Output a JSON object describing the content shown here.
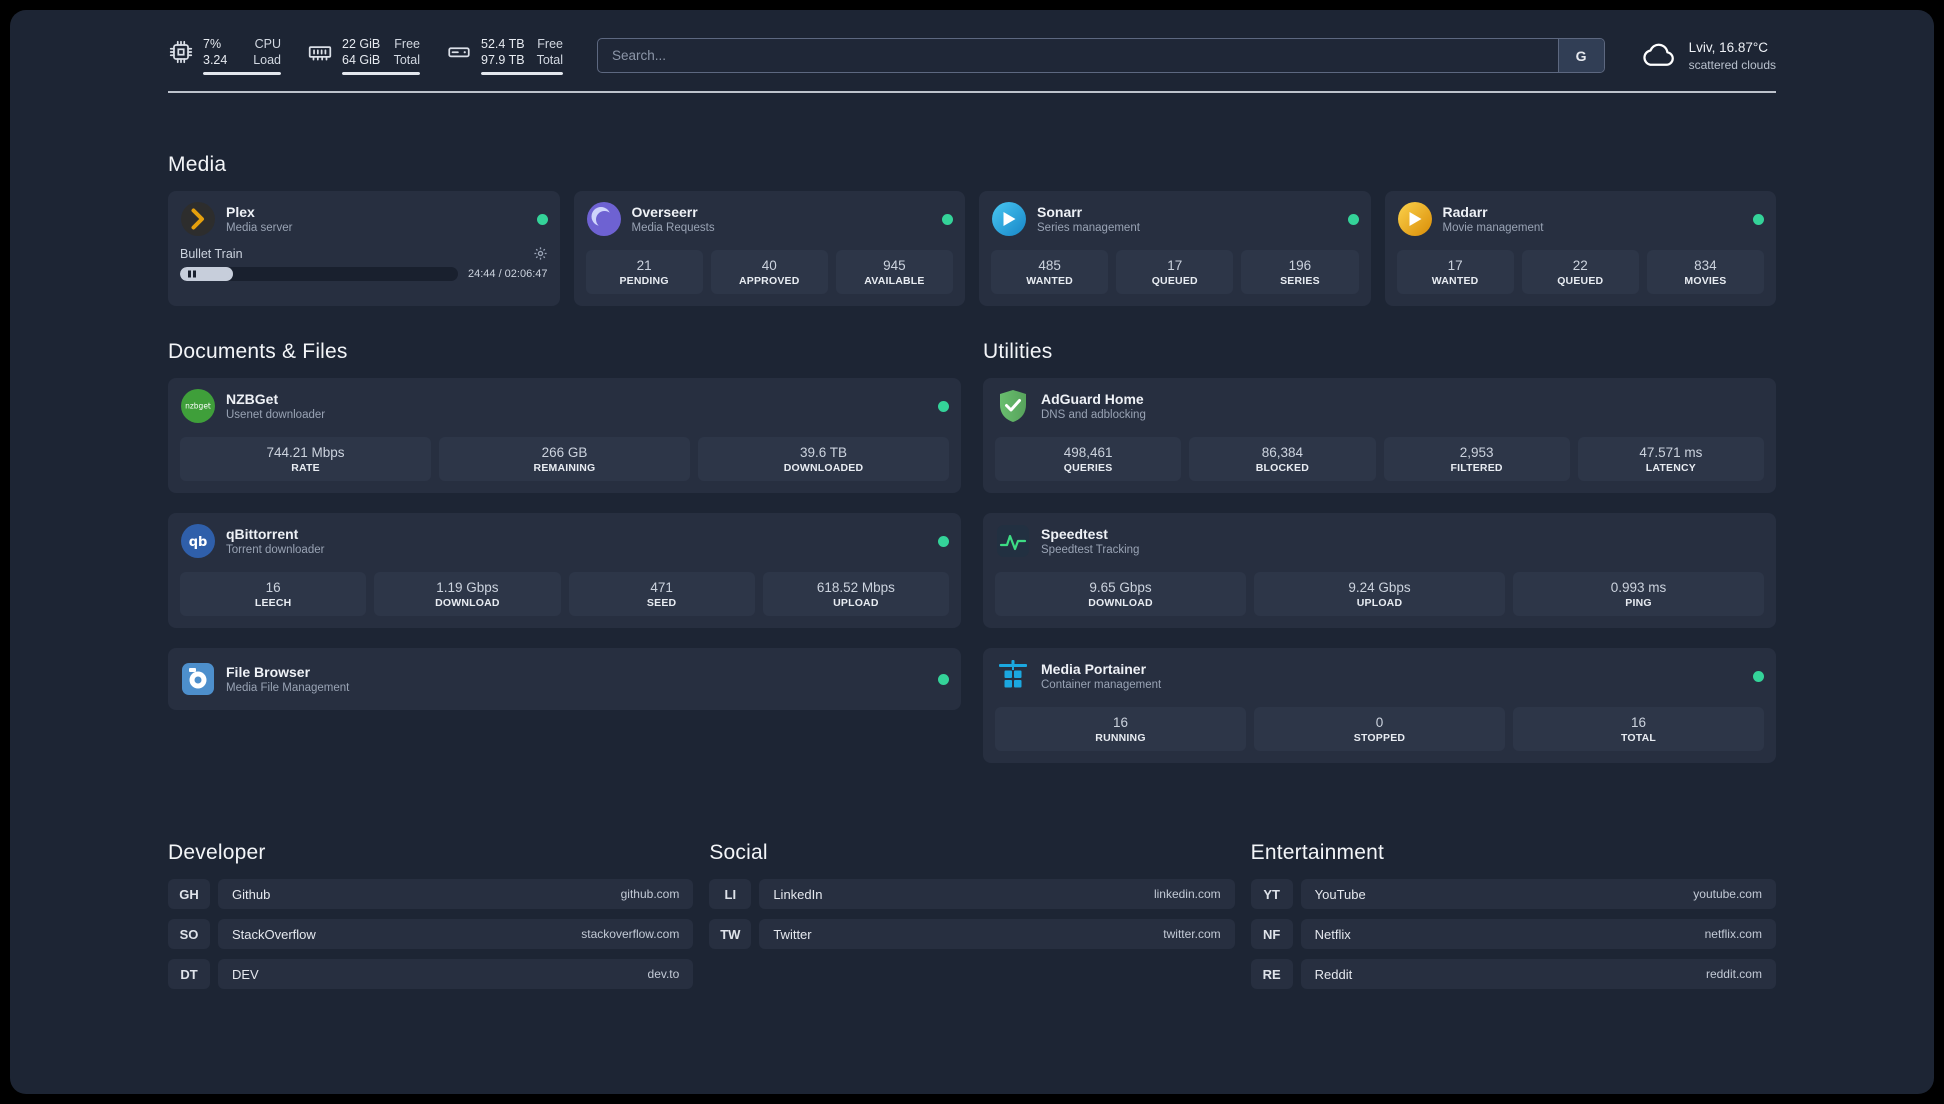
{
  "topbar": {
    "cpu": {
      "v1": "7%",
      "l1": "CPU",
      "v2": "3.24",
      "l2": "Load"
    },
    "memory": {
      "v1": "22 GiB",
      "l1": "Free",
      "v2": "64 GiB",
      "l2": "Total"
    },
    "disk": {
      "v1": "52.4 TB",
      "l1": "Free",
      "v2": "97.9 TB",
      "l2": "Total"
    },
    "search": {
      "placeholder": "Search...",
      "button_label": "G"
    },
    "weather": {
      "location": "Lviv, 16.87°C",
      "condition": "scattered clouds"
    }
  },
  "sections": {
    "media": "Media",
    "documents": "Documents & Files",
    "utilities": "Utilities"
  },
  "media": {
    "plex": {
      "name": "Plex",
      "desc": "Media server",
      "now_playing": "Bullet Train",
      "time": "24:44 / 02:06:47",
      "progress_percent": 19
    },
    "overseerr": {
      "name": "Overseerr",
      "desc": "Media Requests",
      "stats": [
        {
          "value": "21",
          "label": "PENDING"
        },
        {
          "value": "40",
          "label": "APPROVED"
        },
        {
          "value": "945",
          "label": "AVAILABLE"
        }
      ]
    },
    "sonarr": {
      "name": "Sonarr",
      "desc": "Series management",
      "stats": [
        {
          "value": "485",
          "label": "WANTED"
        },
        {
          "value": "17",
          "label": "QUEUED"
        },
        {
          "value": "196",
          "label": "SERIES"
        }
      ]
    },
    "radarr": {
      "name": "Radarr",
      "desc": "Movie management",
      "stats": [
        {
          "value": "17",
          "label": "WANTED"
        },
        {
          "value": "22",
          "label": "QUEUED"
        },
        {
          "value": "834",
          "label": "MOVIES"
        }
      ]
    }
  },
  "documents": {
    "nzbget": {
      "name": "NZBGet",
      "desc": "Usenet downloader",
      "stats": [
        {
          "value": "744.21 Mbps",
          "label": "RATE"
        },
        {
          "value": "266 GB",
          "label": "REMAINING"
        },
        {
          "value": "39.6 TB",
          "label": "DOWNLOADED"
        }
      ]
    },
    "qbittorrent": {
      "name": "qBittorrent",
      "desc": "Torrent downloader",
      "stats": [
        {
          "value": "16",
          "label": "LEECH"
        },
        {
          "value": "1.19 Gbps",
          "label": "DOWNLOAD"
        },
        {
          "value": "471",
          "label": "SEED"
        },
        {
          "value": "618.52 Mbps",
          "label": "UPLOAD"
        }
      ]
    },
    "filebrowser": {
      "name": "File Browser",
      "desc": "Media File Management"
    }
  },
  "utilities": {
    "adguard": {
      "name": "AdGuard Home",
      "desc": "DNS and adblocking",
      "stats": [
        {
          "value": "498,461",
          "label": "QUERIES"
        },
        {
          "value": "86,384",
          "label": "BLOCKED"
        },
        {
          "value": "2,953",
          "label": "FILTERED"
        },
        {
          "value": "47.571 ms",
          "label": "LATENCY"
        }
      ]
    },
    "speedtest": {
      "name": "Speedtest",
      "desc": "Speedtest Tracking",
      "stats": [
        {
          "value": "9.65 Gbps",
          "label": "DOWNLOAD"
        },
        {
          "value": "9.24 Gbps",
          "label": "UPLOAD"
        },
        {
          "value": "0.993 ms",
          "label": "PING"
        }
      ]
    },
    "portainer": {
      "name": "Media Portainer",
      "desc": "Container management",
      "stats": [
        {
          "value": "16",
          "label": "RUNNING"
        },
        {
          "value": "0",
          "label": "STOPPED"
        },
        {
          "value": "16",
          "label": "TOTAL"
        }
      ]
    }
  },
  "bookmarks": {
    "developer": {
      "title": "Developer",
      "links": [
        {
          "abbr": "GH",
          "name": "Github",
          "url": "github.com"
        },
        {
          "abbr": "SO",
          "name": "StackOverflow",
          "url": "stackoverflow.com"
        },
        {
          "abbr": "DT",
          "name": "DEV",
          "url": "dev.to"
        }
      ]
    },
    "social": {
      "title": "Social",
      "links": [
        {
          "abbr": "LI",
          "name": "LinkedIn",
          "url": "linkedin.com"
        },
        {
          "abbr": "TW",
          "name": "Twitter",
          "url": "twitter.com"
        }
      ]
    },
    "entertainment": {
      "title": "Entertainment",
      "links": [
        {
          "abbr": "YT",
          "name": "YouTube",
          "url": "youtube.com"
        },
        {
          "abbr": "NF",
          "name": "Netflix",
          "url": "netflix.com"
        },
        {
          "abbr": "RE",
          "name": "Reddit",
          "url": "reddit.com"
        }
      ]
    }
  },
  "colors": {
    "status_online": "#34d399",
    "plex_accent": "#e5a00d",
    "speedtest_line": "#3ddc84"
  }
}
